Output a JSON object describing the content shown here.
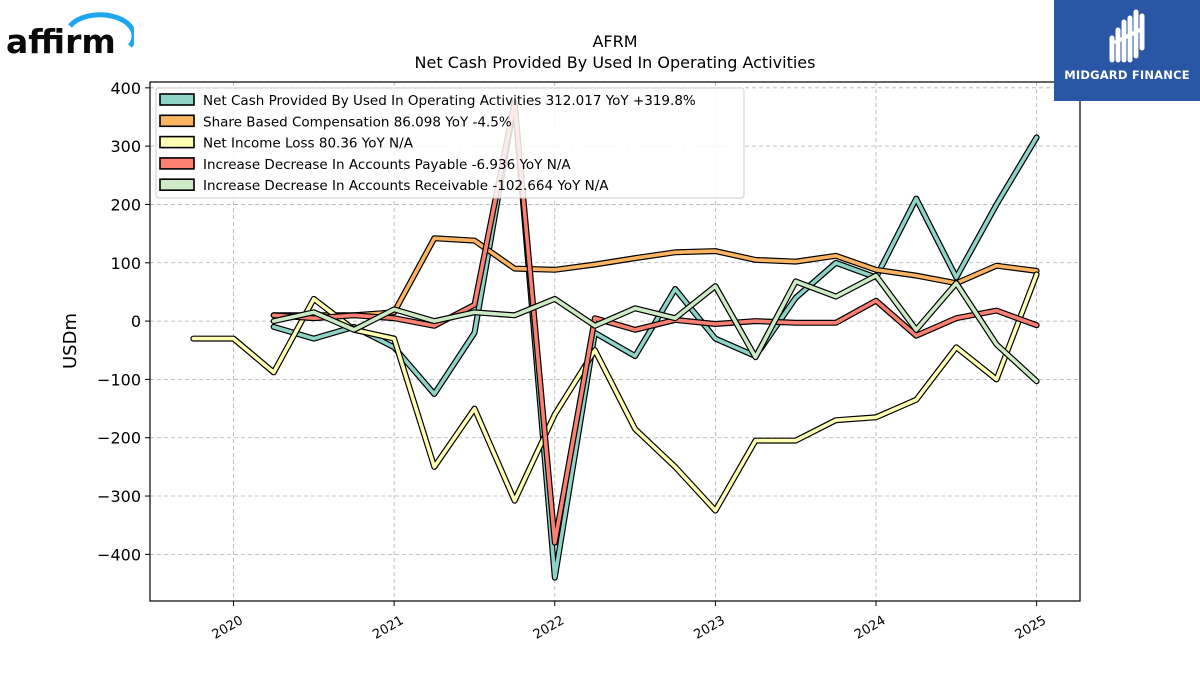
{
  "logos": {
    "left_text": "affirm",
    "left_accent_color": "#1ea7ef",
    "right_text": "MIDGARD FINANCE",
    "right_bg_color": "#2a56a6"
  },
  "chart_data": {
    "type": "line",
    "title": "AFRM",
    "subtitle": "Net Cash Provided By Used In Operating Activities",
    "xlabel": "",
    "ylabel": "USDm",
    "xlim": [
      2019.48,
      2025.27
    ],
    "ylim": [
      -480,
      410
    ],
    "x_ticks": [
      2020,
      2021,
      2022,
      2023,
      2024,
      2025
    ],
    "x_tick_labels": [
      "2020",
      "2021",
      "2022",
      "2023",
      "2024",
      "2025"
    ],
    "y_ticks": [
      -400,
      -300,
      -200,
      -100,
      0,
      100,
      200,
      300,
      400
    ],
    "y_tick_labels": [
      "−400",
      "−300",
      "−200",
      "−100",
      "0",
      "100",
      "200",
      "300",
      "400"
    ],
    "grid": true,
    "legend_position": "top-left",
    "series": [
      {
        "name": "Net Cash Provided By Used In Operating Activities  312.017 YoY +319.8%",
        "color": "#8dd3c7",
        "x": [
          2020.25,
          2020.5,
          2020.75,
          2021.0,
          2021.25,
          2021.5,
          2021.75,
          2022.0,
          2022.25,
          2022.5,
          2022.75,
          2023.0,
          2023.25,
          2023.5,
          2023.75,
          2024.0,
          2024.25,
          2024.5,
          2024.75,
          2025.0
        ],
        "values": [
          -10,
          -30,
          -10,
          -45,
          -125,
          -20,
          375,
          -440,
          -20,
          -60,
          55,
          -30,
          -60,
          40,
          100,
          75,
          210,
          75,
          200,
          315
        ]
      },
      {
        "name": "Share Based Compensation  86.098 YoY -4.5%",
        "color": "#fdb462",
        "x": [
          2020.25,
          2020.5,
          2020.75,
          2021.0,
          2021.25,
          2021.5,
          2021.75,
          2022.0,
          2022.25,
          2022.5,
          2022.75,
          2023.0,
          2023.25,
          2023.5,
          2023.75,
          2024.0,
          2024.25,
          2024.5,
          2024.75,
          2025.0
        ],
        "values": [
          10,
          10,
          10,
          15,
          142,
          138,
          90,
          88,
          97,
          108,
          118,
          120,
          105,
          102,
          112,
          88,
          78,
          65,
          95,
          86
        ]
      },
      {
        "name": "Net Income Loss  80.36 YoY N/A",
        "color": "#ffffb3",
        "x": [
          2019.75,
          2020.0,
          2020.25,
          2020.5,
          2020.75,
          2021.0,
          2021.25,
          2021.5,
          2021.75,
          2022.0,
          2022.25,
          2022.5,
          2022.75,
          2023.0,
          2023.25,
          2023.5,
          2023.75,
          2024.0,
          2024.25,
          2024.5,
          2024.75,
          2025.0
        ],
        "values": [
          -30,
          -30,
          -88,
          38,
          -15,
          -30,
          -250,
          -150,
          -308,
          -160,
          -50,
          -185,
          -250,
          -325,
          -205,
          -205,
          -170,
          -165,
          -135,
          -45,
          -100,
          80
        ]
      },
      {
        "name": "Increase Decrease In Accounts Payable  -6.936 YoY N/A",
        "color": "#fb8072",
        "x": [
          2020.25,
          2020.5,
          2020.75,
          2021.0,
          2021.25,
          2021.5,
          2021.75,
          2022.0,
          2022.25,
          2022.5,
          2022.75,
          2023.0,
          2023.25,
          2023.5,
          2023.75,
          2024.0,
          2024.25,
          2024.5,
          2024.75,
          2025.0
        ],
        "values": [
          10,
          5,
          10,
          5,
          -8,
          28,
          375,
          -380,
          5,
          -15,
          2,
          -5,
          0,
          -3,
          -3,
          35,
          -25,
          5,
          18,
          -7
        ]
      },
      {
        "name": "Increase Decrease In Accounts Receivable  -102.664 YoY N/A",
        "color": "#ccebc5",
        "x": [
          2020.25,
          2020.5,
          2020.75,
          2021.0,
          2021.25,
          2021.5,
          2021.75,
          2022.0,
          2022.25,
          2022.5,
          2022.75,
          2023.0,
          2023.25,
          2023.5,
          2023.75,
          2024.0,
          2024.25,
          2024.5,
          2024.75,
          2025.0
        ],
        "values": [
          0,
          15,
          -15,
          20,
          0,
          15,
          10,
          38,
          -8,
          22,
          5,
          60,
          -62,
          68,
          42,
          78,
          -15,
          65,
          -40,
          -103
        ]
      }
    ]
  }
}
